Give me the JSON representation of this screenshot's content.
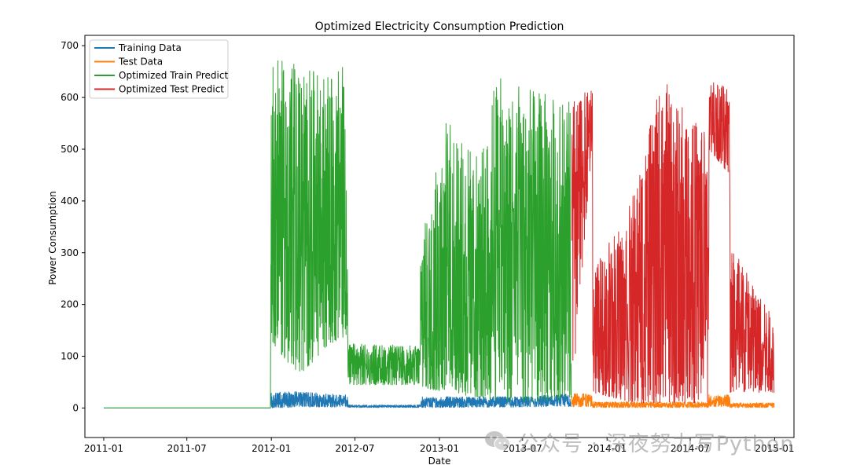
{
  "chart_data": {
    "type": "line",
    "title": "Optimized Electricity Consumption Prediction",
    "xlabel": "Date",
    "ylabel": "Power Consumption",
    "xlim": [
      "2010-11-21",
      "2015-02-12"
    ],
    "ylim": [
      -57,
      720
    ],
    "x_ticks": [
      "2011-01",
      "2011-07",
      "2012-01",
      "2012-07",
      "2013-01",
      "2013-07",
      "2014-01",
      "2014-07",
      "2015-01"
    ],
    "y_ticks": [
      0,
      100,
      200,
      300,
      400,
      500,
      600,
      700
    ],
    "legend_position": "upper-left",
    "series": [
      {
        "name": "Training Data",
        "color": "#1f77b4",
        "envelope": [
          {
            "x": "2011-01-01",
            "low": 0,
            "high": 0
          },
          {
            "x": "2011-12-30",
            "low": 0,
            "high": 0
          },
          {
            "x": "2011-12-31",
            "low": 0,
            "high": 30
          },
          {
            "x": "2012-03-01",
            "low": 2,
            "high": 32
          },
          {
            "x": "2012-06-15",
            "low": 2,
            "high": 25
          },
          {
            "x": "2012-06-16",
            "low": 1,
            "high": 6
          },
          {
            "x": "2012-11-20",
            "low": 1,
            "high": 6
          },
          {
            "x": "2012-11-21",
            "low": 1,
            "high": 22
          },
          {
            "x": "2013-07-01",
            "low": 2,
            "high": 22
          },
          {
            "x": "2013-10-15",
            "low": 3,
            "high": 28
          }
        ]
      },
      {
        "name": "Test Data",
        "color": "#ff7f0e",
        "envelope": [
          {
            "x": "2013-10-16",
            "low": 2,
            "high": 28
          },
          {
            "x": "2013-11-30",
            "low": 3,
            "high": 28
          },
          {
            "x": "2013-12-01",
            "low": 1,
            "high": 12
          },
          {
            "x": "2014-08-10",
            "low": 1,
            "high": 12
          },
          {
            "x": "2014-08-11",
            "low": 3,
            "high": 26
          },
          {
            "x": "2014-09-25",
            "low": 3,
            "high": 26
          },
          {
            "x": "2014-09-26",
            "low": 1,
            "high": 10
          },
          {
            "x": "2014-12-31",
            "low": 1,
            "high": 10
          }
        ]
      },
      {
        "name": "Optimized Train Predict",
        "color": "#2ca02c",
        "envelope": [
          {
            "x": "2011-01-01",
            "low": 0,
            "high": 0
          },
          {
            "x": "2011-12-30",
            "low": 0,
            "high": 0
          },
          {
            "x": "2011-12-31",
            "low": 130,
            "high": 675
          },
          {
            "x": "2012-03-01",
            "low": 60,
            "high": 665
          },
          {
            "x": "2012-05-01",
            "low": 120,
            "high": 640
          },
          {
            "x": "2012-06-12",
            "low": 140,
            "high": 665
          },
          {
            "x": "2012-06-16",
            "low": 45,
            "high": 125
          },
          {
            "x": "2012-11-20",
            "low": 45,
            "high": 120
          },
          {
            "x": "2012-11-21",
            "low": 40,
            "high": 320
          },
          {
            "x": "2013-01-15",
            "low": 30,
            "high": 560
          },
          {
            "x": "2013-04-01",
            "low": 20,
            "high": 480
          },
          {
            "x": "2013-05-01",
            "low": 15,
            "high": 640
          },
          {
            "x": "2013-07-15",
            "low": 10,
            "high": 620
          },
          {
            "x": "2013-10-15",
            "low": 20,
            "high": 590
          }
        ]
      },
      {
        "name": "Optimized Test Predict",
        "color": "#d62728",
        "envelope": [
          {
            "x": "2013-10-16",
            "low": 10,
            "high": 600
          },
          {
            "x": "2013-11-30",
            "low": 520,
            "high": 615
          },
          {
            "x": "2013-12-01",
            "low": 30,
            "high": 260
          },
          {
            "x": "2014-03-01",
            "low": 10,
            "high": 420
          },
          {
            "x": "2014-05-01",
            "low": 10,
            "high": 640
          },
          {
            "x": "2014-08-10",
            "low": 10,
            "high": 530
          },
          {
            "x": "2014-08-11",
            "low": 500,
            "high": 635
          },
          {
            "x": "2014-09-25",
            "low": 450,
            "high": 630
          },
          {
            "x": "2014-09-26",
            "low": 30,
            "high": 330
          },
          {
            "x": "2014-12-31",
            "low": 30,
            "high": 170
          }
        ]
      }
    ]
  },
  "watermark": {
    "text": "公众号 · 深夜努力写Python",
    "icon": "wechat-icon"
  }
}
